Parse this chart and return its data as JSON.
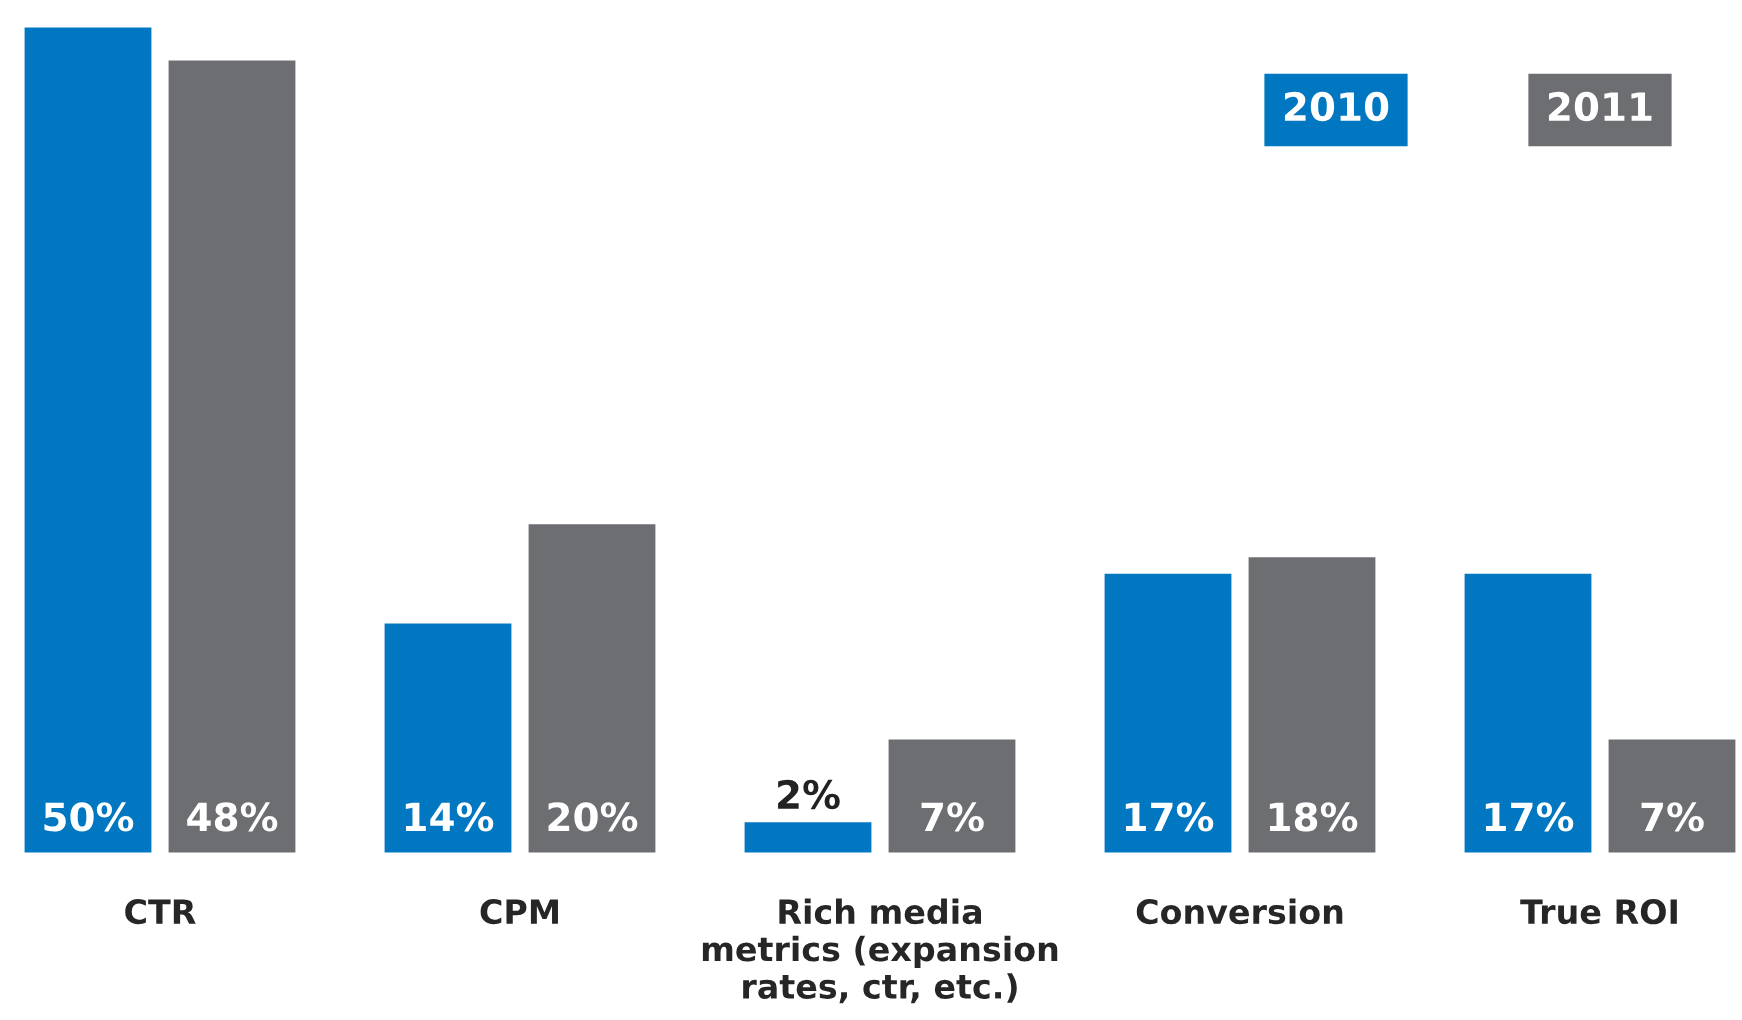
{
  "chart_data": {
    "type": "bar",
    "categories": [
      "CTR",
      "CPM",
      "Rich media\nmetrics (expansion\nrates, ctr, etc.)",
      "Conversion",
      "True ROI"
    ],
    "series": [
      {
        "name": "2010",
        "color": "#0077c0",
        "values": [
          50,
          14,
          2,
          17,
          17
        ],
        "value_labels": [
          "50%",
          "14%",
          "2%",
          "17%",
          "17%"
        ]
      },
      {
        "name": "2011",
        "color": "#6d6e71",
        "values": [
          48,
          20,
          7,
          18,
          7
        ],
        "value_labels": [
          "48%",
          "20%",
          "7%",
          "18%",
          "7%"
        ]
      }
    ],
    "legend": "top right",
    "relative": false
  }
}
